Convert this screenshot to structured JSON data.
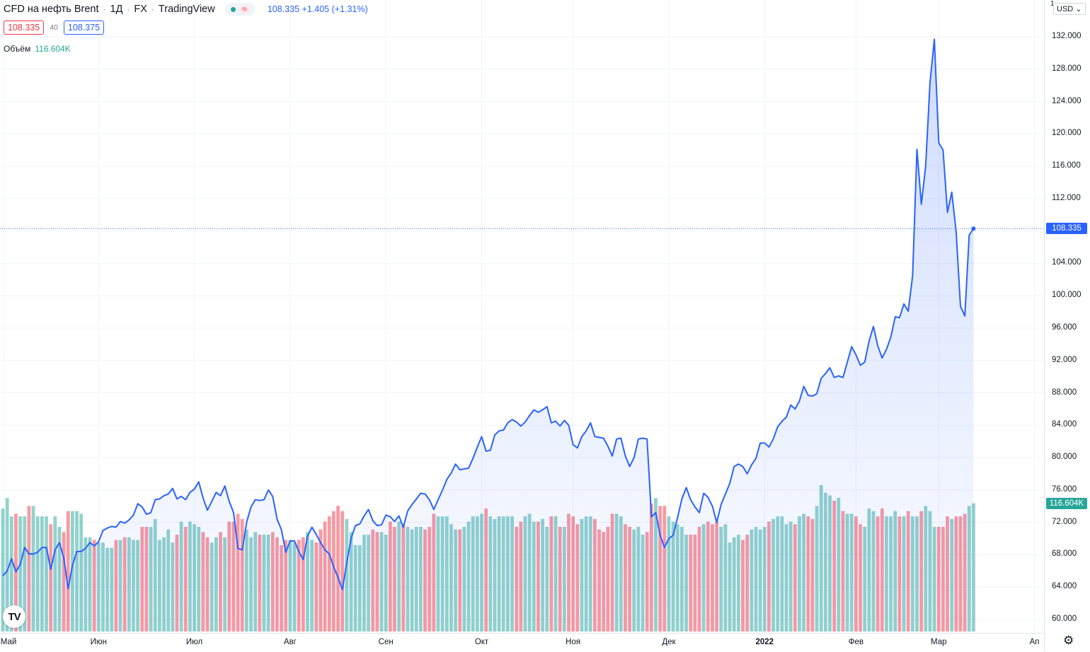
{
  "header": {
    "symbol": "CFD на нефть Brent",
    "interval": "1Д",
    "exchange": "FX",
    "source": "TradingView",
    "wave": "≈",
    "quote": "108.335  +1.405 (+1.31%)"
  },
  "trade": {
    "sell": "108.335",
    "spread": "40",
    "buy": "108.375"
  },
  "volume_legend": {
    "label": "Объём",
    "value": "116.604K"
  },
  "axis": {
    "currency": "USD",
    "top_label": "1",
    "last_price_tag": "108.335",
    "last_volume_tag": "116.604K",
    "settings_icon": "gear-icon"
  },
  "logo_text": "TV",
  "colors": {
    "line": "#2962ff",
    "up_volume": "#26a69a",
    "down_volume": "#f23645",
    "grid": "#f0f3fa"
  },
  "chart_data": {
    "type": "area",
    "title": "",
    "ylim": [
      60,
      132
    ],
    "yticks": [
      "132.000",
      "128.000",
      "124.000",
      "120.000",
      "116.000",
      "112.000",
      "108.000",
      "104.000",
      "100.000",
      "96.000",
      "92.000",
      "88.000",
      "84.000",
      "80.000",
      "76.000",
      "72.000",
      "68.000",
      "64.000",
      "60.000"
    ],
    "xticks": [
      {
        "label": "Май",
        "pos": 0.2
      },
      {
        "label": "Июн",
        "pos": 22
      },
      {
        "label": "Июл",
        "pos": 44
      },
      {
        "label": "Авг",
        "pos": 66
      },
      {
        "label": "Сен",
        "pos": 88
      },
      {
        "label": "Окт",
        "pos": 110
      },
      {
        "label": "Ноя",
        "pos": 131
      },
      {
        "label": "Дек",
        "pos": 153
      },
      {
        "label": "2022",
        "pos": 175,
        "bold": true
      },
      {
        "label": "Фев",
        "pos": 196
      },
      {
        "label": "Мар",
        "pos": 215
      },
      {
        "label": "Ап",
        "pos": 237
      }
    ],
    "x_count": 229,
    "series": [
      {
        "values": [
          65.4,
          66.0,
          67.5,
          65.9,
          66.8,
          68.9,
          68.1,
          68.1,
          68.3,
          68.9,
          68.9,
          66.2,
          68.6,
          69.5,
          67.6,
          63.8,
          66.7,
          68.4,
          68.4,
          68.8,
          69.5,
          69.1,
          69.6,
          71.0,
          71.3,
          71.5,
          71.4,
          72.1,
          71.9,
          72.3,
          72.9,
          74.3,
          73.9,
          73.0,
          73.2,
          74.8,
          74.9,
          75.3,
          75.5,
          76.2,
          74.9,
          75.2,
          74.8,
          75.7,
          76.1,
          77.0,
          75.0,
          73.5,
          74.6,
          75.7,
          75.3,
          76.5,
          74.6,
          73.2,
          68.8,
          68.6,
          72.0,
          73.9,
          74.8,
          74.7,
          74.8,
          76.0,
          75.2,
          72.4,
          71.1,
          68.3,
          69.7,
          69.7,
          68.4,
          67.4,
          70.3,
          71.4,
          70.5,
          69.5,
          68.6,
          68.1,
          66.5,
          65.2,
          63.7,
          67.0,
          70.0,
          71.6,
          71.8,
          72.8,
          73.6,
          72.2,
          71.6,
          71.7,
          72.9,
          72.7,
          72.1,
          72.8,
          71.4,
          73.4,
          74.2,
          74.9,
          75.6,
          75.5,
          74.8,
          73.6,
          74.8,
          76.0,
          77.3,
          78.1,
          79.2,
          78.5,
          78.6,
          78.7,
          79.9,
          81.3,
          82.6,
          80.8,
          80.9,
          82.8,
          83.3,
          83.4,
          84.3,
          84.7,
          84.4,
          83.9,
          84.4,
          85.2,
          85.9,
          85.6,
          85.9,
          86.3,
          84.3,
          84.5,
          83.9,
          84.6,
          84.0,
          81.6,
          81.2,
          82.6,
          83.3,
          84.3,
          82.6,
          82.5,
          82.4,
          81.4,
          80.2,
          82.3,
          82.4,
          80.2,
          78.9,
          80.0,
          82.3,
          82.4,
          82.3,
          72.7,
          73.2,
          70.4,
          68.9,
          70.0,
          70.4,
          72.6,
          74.9,
          76.3,
          74.8,
          73.9,
          73.2,
          75.6,
          75.1,
          74.0,
          72.0,
          74.2,
          75.5,
          76.8,
          78.9,
          79.2,
          78.9,
          78.0,
          79.1,
          79.9,
          81.8,
          81.8,
          81.3,
          82.3,
          83.8,
          84.5,
          85.0,
          86.5,
          86.0,
          87.0,
          88.8,
          87.7,
          87.6,
          87.9,
          89.8,
          90.4,
          91.1,
          89.9,
          90.1,
          89.9,
          91.8,
          93.7,
          92.7,
          91.4,
          91.8,
          94.4,
          96.2,
          93.8,
          92.3,
          93.4,
          94.9,
          97.4,
          97.3,
          99.0,
          98.1,
          102.5,
          118.1,
          111.3,
          116.0,
          126.4,
          131.7,
          118.9,
          118.0,
          110.3,
          112.8,
          107.9,
          98.7,
          97.5,
          107.5,
          108.3
        ]
      }
    ],
    "volume_series": [
      {
        "values": [
          47,
          51,
          44,
          45,
          44,
          44,
          48,
          48,
          44,
          44,
          44,
          41,
          44,
          40,
          38,
          46,
          46,
          46,
          45,
          36,
          36,
          35,
          34,
          34,
          32,
          32,
          35,
          35,
          36,
          36,
          35,
          35,
          40,
          40,
          40,
          43,
          35,
          36,
          39,
          34,
          37,
          42,
          40,
          42,
          41,
          40,
          38,
          36,
          34,
          36,
          38,
          36,
          42,
          42,
          45,
          43,
          39,
          36,
          38,
          37,
          37,
          37,
          38,
          36,
          33,
          35,
          35,
          34,
          35,
          36,
          38,
          35,
          34,
          39,
          42,
          44,
          46,
          48,
          46,
          43,
          38,
          33,
          33,
          37,
          37,
          39,
          38,
          38,
          37,
          42,
          40,
          42,
          41,
          40,
          39,
          40,
          40,
          39,
          40,
          45,
          44,
          44,
          44,
          41,
          39,
          39,
          40,
          42,
          44,
          44,
          45,
          47,
          44,
          43,
          44,
          44,
          44,
          44,
          40,
          42,
          44,
          45,
          42,
          42,
          43,
          40,
          44,
          44,
          40,
          40,
          45,
          44,
          41,
          43,
          44,
          44,
          43,
          39,
          38,
          40,
          45,
          45,
          44,
          41,
          40,
          39,
          40,
          37,
          38,
          49,
          51,
          48,
          48,
          44,
          42,
          41,
          40,
          37,
          37,
          37,
          40,
          41,
          42,
          41,
          42,
          40,
          41,
          34,
          36,
          37,
          35,
          37,
          39,
          40,
          39,
          40,
          42,
          43,
          44,
          44,
          41,
          42,
          41,
          44,
          45,
          44,
          43,
          48,
          56,
          53,
          52,
          50,
          51,
          46,
          45,
          45,
          44,
          41,
          40,
          47,
          46,
          44,
          47,
          44,
          44,
          46,
          44,
          44,
          46,
          44,
          44,
          46,
          48,
          46,
          40,
          40,
          40,
          44,
          43,
          44,
          44,
          45,
          48,
          49,
          56,
          60,
          46,
          38,
          37,
          37,
          35,
          35
        ]
      }
    ]
  }
}
